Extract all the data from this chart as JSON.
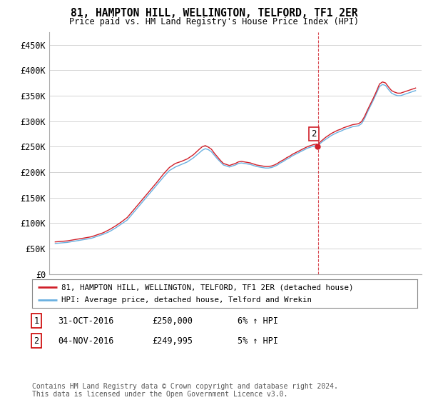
{
  "title": "81, HAMPTON HILL, WELLINGTON, TELFORD, TF1 2ER",
  "subtitle": "Price paid vs. HM Land Registry's House Price Index (HPI)",
  "ylim": [
    0,
    475000
  ],
  "yticks": [
    0,
    50000,
    100000,
    150000,
    200000,
    250000,
    300000,
    350000,
    400000,
    450000
  ],
  "legend_line1": "81, HAMPTON HILL, WELLINGTON, TELFORD, TF1 2ER (detached house)",
  "legend_line2": "HPI: Average price, detached house, Telford and Wrekin",
  "note1_num": "1",
  "note1_date": "31-OCT-2016",
  "note1_price": "£250,000",
  "note1_hpi": "6% ↑ HPI",
  "note2_num": "2",
  "note2_date": "04-NOV-2016",
  "note2_price": "£249,995",
  "note2_hpi": "5% ↑ HPI",
  "footer": "Contains HM Land Registry data © Crown copyright and database right 2024.\nThis data is licensed under the Open Government Licence v3.0.",
  "hpi_color": "#6ab0e0",
  "price_color": "#d0202a",
  "xlim_left": 1994.5,
  "xlim_right": 2025.5
}
